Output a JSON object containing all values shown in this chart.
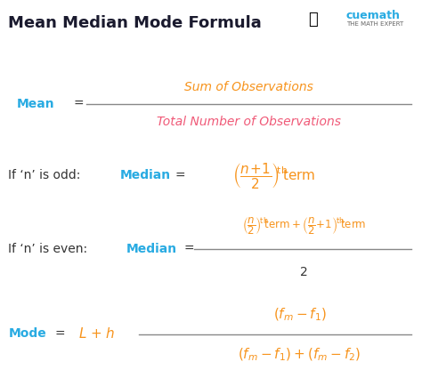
{
  "title": "Mean Median Mode Formula",
  "title_color": "#1a1a2e",
  "bg_color": "#ffffff",
  "blue_color": "#29ABE2",
  "orange_color": "#F7941D",
  "pink_color": "#F05A78",
  "black_color": "#333333",
  "gray_color": "#666666",
  "mean_label": "Mean",
  "mean_numerator": "Sum of Observations",
  "mean_denominator": "Total Number of Observations",
  "odd_prefix": "If ‘n’ is odd:",
  "odd_median": "Median",
  "even_prefix": "If ‘n’ is even:",
  "even_median": "Median",
  "even_den": "2",
  "mode_label": "Mode",
  "fig_width": 4.74,
  "fig_height": 4.34,
  "dpi": 100
}
